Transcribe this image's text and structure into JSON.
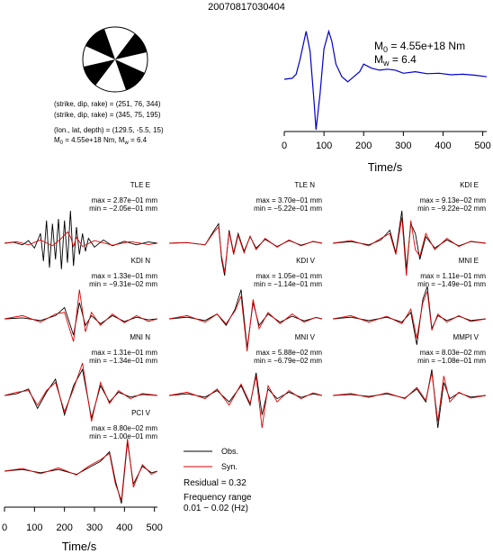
{
  "title": "20070817030404",
  "colors": {
    "obs": "#000000",
    "syn": "#dd0000",
    "stf": "#0000cc"
  },
  "source": {
    "lines": [
      "(strike, dip, rake) = (251, 76, 344)",
      "(strike, dip, rake) = (345, 75, 195)",
      "(lon., lat, depth) = (129.5, -5.5, 15)"
    ],
    "m0_prefix": "M",
    "m0_sub": "0",
    "m0_value": " = 4.55e+18 Nm, M",
    "mw_sub": "w",
    "mw_value": " = 6.4"
  },
  "stf": {
    "m0_prefix": "M",
    "m0_sub": "0",
    "m0_value": " = 4.55e+18 Nm",
    "mw_prefix": "M",
    "mw_sub": "w",
    "mw_value": " = 6.4",
    "xlabel": "Time/s",
    "ticks": [
      "0",
      "100",
      "200",
      "300",
      "400",
      "500"
    ]
  },
  "legend": {
    "obs": "Obs.",
    "syn": "Syn.",
    "residual": "Residual = 0.32",
    "freq_label": "Frequency range",
    "freq_value": "0.01 − 0.02 (Hz)"
  },
  "bottom_axis": {
    "xlabel": "Time/s",
    "ticks": [
      "0",
      "100",
      "200",
      "300",
      "400",
      "500"
    ]
  },
  "chart_data": [
    {
      "type": "line",
      "title": "20070817030404",
      "xlabel": "Time/s",
      "ylabel": "",
      "xlim": [
        0,
        510
      ],
      "x_ticks": [
        0,
        100,
        200,
        300,
        400,
        500
      ],
      "grid": false,
      "series": [
        {
          "x": [
            0,
            20,
            30,
            40,
            55,
            65,
            75,
            80,
            90,
            100,
            112,
            120,
            130,
            145,
            160,
            175,
            190,
            200,
            220,
            240,
            260,
            280,
            300,
            330,
            360,
            390,
            420,
            450,
            480,
            510
          ],
          "y": [
            0.0,
            0.02,
            0.1,
            0.4,
            0.95,
            0.55,
            -0.45,
            -1.0,
            -0.3,
            0.6,
            0.95,
            0.75,
            0.3,
            0.05,
            -0.05,
            0.05,
            0.15,
            0.3,
            0.22,
            0.18,
            0.2,
            0.18,
            0.12,
            0.15,
            0.11,
            0.12,
            0.09,
            0.1,
            0.08,
            0.05
          ]
        }
      ]
    },
    {
      "type": "line",
      "station": "TLE E",
      "max": "max = 2.87e−01 mm",
      "min": "min = −2.05e−01 mm",
      "show_axis": false,
      "series": [
        {
          "name": "Obs.",
          "x": [
            0,
            30,
            60,
            80,
            100,
            120,
            130,
            140,
            150,
            160,
            170,
            180,
            190,
            200,
            210,
            220,
            230,
            240,
            250,
            260,
            270,
            280,
            300,
            330,
            360,
            400,
            440,
            480,
            510
          ],
          "y": [
            0.0,
            0.03,
            -0.05,
            0.08,
            -0.15,
            0.3,
            -0.55,
            0.7,
            -0.75,
            0.6,
            -0.5,
            0.75,
            -0.8,
            0.7,
            -0.6,
            1.0,
            -0.7,
            0.5,
            -0.35,
            0.3,
            -0.25,
            0.15,
            -0.12,
            0.1,
            -0.08,
            0.06,
            -0.05,
            0.04,
            0.0
          ]
        },
        {
          "name": "Syn.",
          "x": [
            0,
            40,
            80,
            120,
            160,
            190,
            210,
            220,
            230,
            240,
            260,
            300,
            360,
            420,
            480,
            510
          ],
          "y": [
            0.0,
            0.05,
            -0.05,
            0.1,
            -0.08,
            0.15,
            0.35,
            0.2,
            -0.1,
            0.18,
            -0.1,
            0.08,
            -0.06,
            0.05,
            -0.04,
            0.0
          ]
        }
      ]
    },
    {
      "type": "line",
      "station": "TLE N",
      "max": "max = 3.70e−01 mm",
      "min": "min = −5.22e−01 mm",
      "show_axis": false,
      "series": [
        {
          "name": "Obs.",
          "x": [
            0,
            60,
            120,
            150,
            165,
            175,
            185,
            200,
            215,
            230,
            250,
            270,
            290,
            320,
            360,
            400,
            440,
            480,
            510
          ],
          "y": [
            0.0,
            0.02,
            -0.05,
            0.4,
            0.6,
            -0.5,
            -1.0,
            0.4,
            -0.3,
            0.3,
            -0.25,
            0.2,
            -0.15,
            0.12,
            -0.1,
            0.08,
            -0.06,
            0.05,
            0.0
          ]
        },
        {
          "name": "Syn.",
          "x": [
            0,
            60,
            120,
            150,
            165,
            175,
            185,
            200,
            215,
            230,
            250,
            270,
            290,
            320,
            360,
            400,
            440,
            480,
            510
          ],
          "y": [
            0.0,
            0.02,
            -0.05,
            0.35,
            0.5,
            -0.4,
            -0.9,
            0.35,
            -0.35,
            0.25,
            -0.3,
            0.22,
            -0.2,
            0.15,
            -0.12,
            0.1,
            -0.08,
            0.06,
            0.0
          ]
        }
      ]
    },
    {
      "type": "line",
      "station": "KDI E",
      "max": "max = 9.13e−02 mm",
      "min": "min = −9.22e−02 mm",
      "show_axis": false,
      "series": [
        {
          "name": "Obs.",
          "x": [
            0,
            60,
            120,
            160,
            190,
            210,
            230,
            245,
            260,
            275,
            290,
            310,
            340,
            380,
            420,
            460,
            510
          ],
          "y": [
            0.0,
            0.05,
            -0.05,
            0.1,
            0.4,
            -0.3,
            1.0,
            -0.8,
            0.6,
            0.3,
            -0.5,
            0.2,
            -0.15,
            0.1,
            -0.08,
            0.05,
            0.0
          ]
        },
        {
          "name": "Syn.",
          "x": [
            0,
            60,
            120,
            160,
            190,
            210,
            230,
            245,
            260,
            275,
            290,
            310,
            340,
            380,
            420,
            460,
            510
          ],
          "y": [
            0.0,
            0.08,
            -0.08,
            0.15,
            0.3,
            -0.35,
            0.8,
            -1.0,
            0.7,
            -0.2,
            -0.4,
            0.3,
            -0.2,
            0.15,
            -0.1,
            0.06,
            0.0
          ]
        }
      ]
    },
    {
      "type": "line",
      "station": "KDI N",
      "max": "max = 1.33e−01 mm",
      "min": "min = −9.31e−02 mm",
      "show_axis": false,
      "series": [
        {
          "name": "Obs.",
          "x": [
            0,
            60,
            120,
            170,
            200,
            230,
            250,
            270,
            290,
            320,
            360,
            400,
            440,
            480,
            510
          ],
          "y": [
            0.0,
            0.03,
            -0.05,
            0.1,
            0.35,
            -0.5,
            0.5,
            -0.2,
            0.1,
            -0.15,
            0.1,
            -0.08,
            0.05,
            -0.03,
            0.0
          ]
        },
        {
          "name": "Syn.",
          "x": [
            0,
            60,
            120,
            170,
            200,
            230,
            250,
            270,
            290,
            320,
            360,
            400,
            440,
            480,
            510
          ],
          "y": [
            0.0,
            0.1,
            -0.1,
            0.15,
            0.2,
            -0.7,
            0.9,
            -0.4,
            0.2,
            -0.2,
            0.15,
            -0.12,
            0.1,
            -0.08,
            0.0
          ]
        }
      ]
    },
    {
      "type": "line",
      "station": "KDI V",
      "max": "max = 1.05e−01 mm",
      "min": "min = −1.14e−01 mm",
      "show_axis": false,
      "series": [
        {
          "name": "Obs.",
          "x": [
            0,
            60,
            120,
            160,
            190,
            220,
            240,
            260,
            280,
            300,
            330,
            370,
            410,
            450,
            490,
            510
          ],
          "y": [
            0.0,
            0.05,
            -0.05,
            0.15,
            -0.2,
            0.3,
            0.9,
            -0.9,
            0.5,
            -0.2,
            0.15,
            -0.1,
            0.08,
            -0.06,
            0.04,
            0.0
          ]
        },
        {
          "name": "Syn.",
          "x": [
            0,
            60,
            120,
            160,
            190,
            220,
            240,
            260,
            280,
            300,
            330,
            370,
            410,
            450,
            490,
            510
          ],
          "y": [
            0.0,
            0.1,
            -0.1,
            0.15,
            -0.15,
            0.25,
            0.7,
            -1.0,
            0.6,
            -0.3,
            0.2,
            -0.15,
            0.15,
            -0.1,
            0.05,
            0.0
          ]
        }
      ]
    },
    {
      "type": "line",
      "station": "MNI E",
      "max": "max = 1.11e−01 mm",
      "min": "min = −1.49e−01 mm",
      "show_axis": false,
      "series": [
        {
          "name": "Obs.",
          "x": [
            0,
            60,
            120,
            180,
            230,
            260,
            280,
            300,
            315,
            330,
            350,
            380,
            420,
            460,
            510
          ],
          "y": [
            0.0,
            0.05,
            -0.05,
            0.05,
            -0.1,
            0.2,
            -0.8,
            0.6,
            1.0,
            -0.3,
            0.1,
            -0.05,
            0.08,
            -0.05,
            0.0
          ]
        },
        {
          "name": "Syn.",
          "x": [
            0,
            60,
            120,
            180,
            230,
            260,
            280,
            300,
            315,
            330,
            350,
            380,
            420,
            460,
            510
          ],
          "y": [
            0.0,
            0.1,
            -0.1,
            0.08,
            -0.15,
            0.3,
            -0.6,
            0.5,
            0.85,
            -0.35,
            0.15,
            -0.1,
            0.1,
            -0.08,
            0.0
          ]
        }
      ]
    },
    {
      "type": "line",
      "station": "MNI N",
      "max": "max = 1.31e−01 mm",
      "min": "min = −1.34e−01 mm",
      "show_axis": false,
      "series": [
        {
          "name": "Obs.",
          "x": [
            0,
            40,
            80,
            110,
            140,
            170,
            200,
            230,
            260,
            290,
            320,
            350,
            380,
            420,
            460,
            510
          ],
          "y": [
            0.0,
            0.05,
            0.2,
            -0.4,
            0.1,
            0.5,
            -0.6,
            0.3,
            0.8,
            -0.7,
            0.3,
            -0.2,
            0.1,
            -0.05,
            0.03,
            0.0
          ]
        },
        {
          "name": "Syn.",
          "x": [
            0,
            40,
            80,
            110,
            140,
            170,
            200,
            230,
            260,
            290,
            320,
            350,
            380,
            420,
            460,
            510
          ],
          "y": [
            0.0,
            0.1,
            0.15,
            -0.3,
            0.15,
            0.4,
            -0.5,
            0.2,
            1.0,
            -0.8,
            0.4,
            -0.25,
            0.15,
            -0.1,
            0.06,
            0.0
          ]
        }
      ]
    },
    {
      "type": "line",
      "station": "MNI V",
      "max": "max = 5.88e−02 mm",
      "min": "min = −6.79e−02 mm",
      "show_axis": false,
      "series": [
        {
          "name": "Obs.",
          "x": [
            0,
            60,
            120,
            160,
            200,
            240,
            270,
            290,
            310,
            330,
            360,
            400,
            440,
            480,
            510
          ],
          "y": [
            0.0,
            0.05,
            -0.05,
            0.15,
            -0.2,
            0.3,
            -0.3,
            0.7,
            -0.6,
            0.2,
            -0.1,
            0.1,
            -0.06,
            0.05,
            0.0
          ]
        },
        {
          "name": "Syn.",
          "x": [
            0,
            60,
            120,
            160,
            200,
            240,
            270,
            290,
            310,
            330,
            360,
            400,
            440,
            480,
            510
          ],
          "y": [
            0.0,
            0.1,
            -0.1,
            0.2,
            -0.3,
            0.35,
            -0.25,
            0.6,
            -1.0,
            0.3,
            -0.2,
            0.15,
            -0.1,
            0.08,
            0.0
          ]
        }
      ]
    },
    {
      "type": "line",
      "station": "MMPI V",
      "max": "max = 8.03e−02 mm",
      "min": "min = −1.08e−01 mm",
      "show_axis": false,
      "series": [
        {
          "name": "Obs.",
          "x": [
            0,
            60,
            120,
            180,
            240,
            280,
            310,
            330,
            350,
            370,
            390,
            420,
            460,
            510
          ],
          "y": [
            0.0,
            0.03,
            -0.03,
            0.05,
            -0.08,
            0.2,
            -0.2,
            0.8,
            -1.0,
            0.4,
            -0.1,
            0.08,
            -0.05,
            0.0
          ]
        },
        {
          "name": "Syn.",
          "x": [
            0,
            60,
            120,
            180,
            240,
            280,
            310,
            330,
            350,
            370,
            390,
            420,
            460,
            510
          ],
          "y": [
            0.0,
            0.06,
            -0.06,
            0.08,
            -0.1,
            0.25,
            -0.15,
            0.7,
            -0.8,
            0.6,
            -0.2,
            0.1,
            -0.08,
            0.0
          ]
        }
      ]
    },
    {
      "type": "line",
      "station": "PCI V",
      "max": "max = 8.80e−02 mm",
      "min": "min = −1.00e−01 mm",
      "show_axis": true,
      "xlabel": "Time/s",
      "x_ticks": [
        0,
        100,
        200,
        300,
        400,
        500
      ],
      "series": [
        {
          "name": "Obs.",
          "x": [
            0,
            60,
            120,
            180,
            240,
            280,
            320,
            350,
            370,
            390,
            410,
            430,
            460,
            490,
            510
          ],
          "y": [
            0.0,
            0.05,
            -0.05,
            0.05,
            -0.1,
            0.1,
            0.3,
            0.6,
            -0.3,
            -1.0,
            0.9,
            -0.4,
            0.15,
            -0.05,
            0.0
          ]
        },
        {
          "name": "Syn.",
          "x": [
            0,
            60,
            120,
            180,
            240,
            280,
            320,
            350,
            370,
            390,
            410,
            430,
            460,
            490,
            510
          ],
          "y": [
            0.0,
            0.08,
            -0.08,
            0.1,
            -0.12,
            0.15,
            0.35,
            0.55,
            -0.4,
            -0.9,
            1.0,
            -0.5,
            0.2,
            -0.1,
            0.0
          ]
        }
      ]
    }
  ]
}
